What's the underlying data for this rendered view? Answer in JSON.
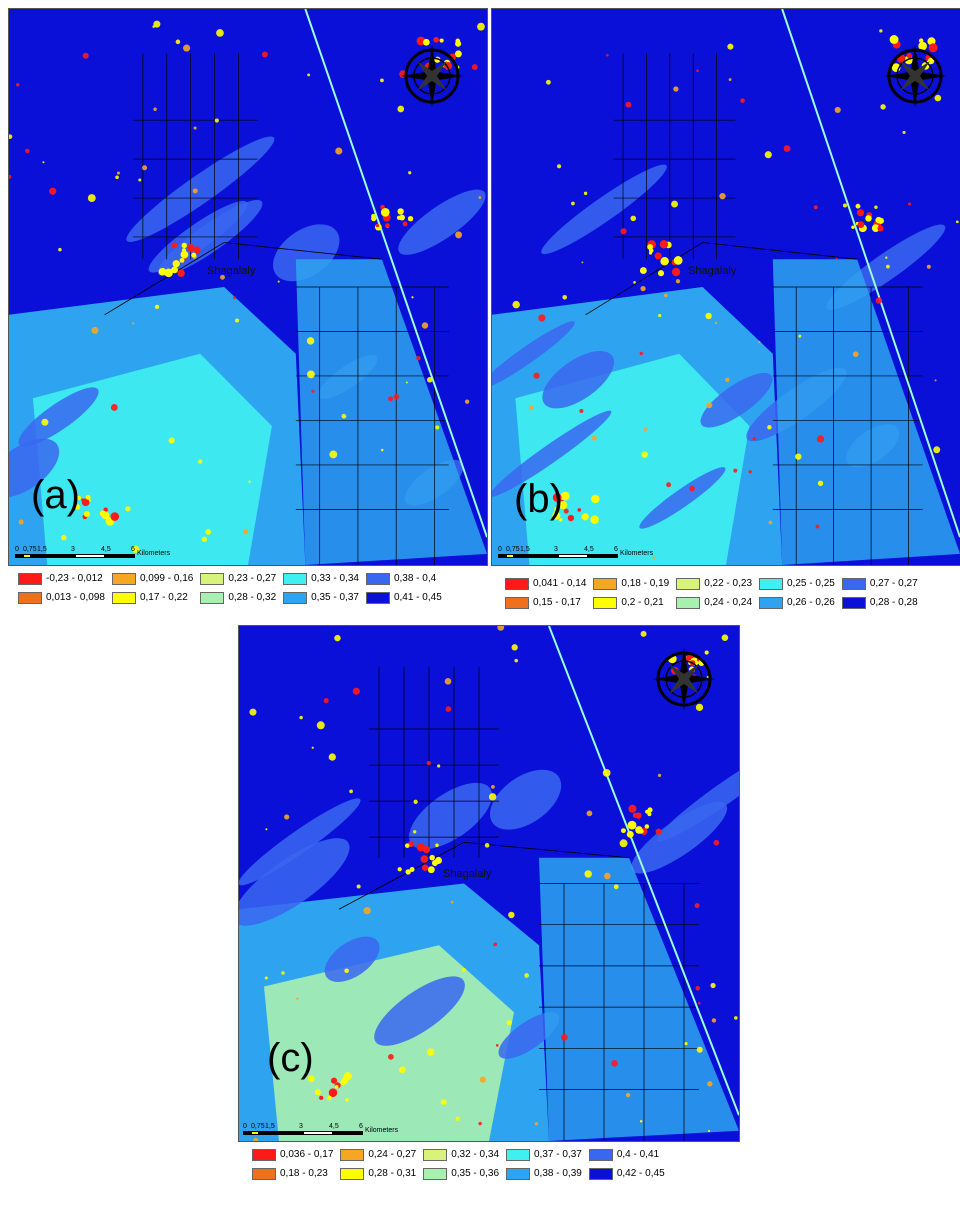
{
  "panels": [
    {
      "label": "(a)",
      "town": "Shagalaly",
      "scale": {
        "ticks": [
          "0",
          "0,75",
          "1,5",
          "3",
          "4,5",
          "6"
        ],
        "unit": "Kilometers"
      },
      "legend": [
        "-0,23 - 0,012",
        "0,013 - 0,098",
        "0,099 - 0,16",
        "0,17 - 0,22",
        "0,23 - 0,27",
        "0,28 - 0,32",
        "0,33 - 0,34",
        "0,35 - 0,37",
        "0,38 - 0,4",
        "0,41 - 0,45"
      ]
    },
    {
      "label": "(b)",
      "town": "Shagalaly",
      "scale": {
        "ticks": [
          "0",
          "0,75",
          "1,5",
          "3",
          "4,5",
          "6"
        ],
        "unit": "Kilometers"
      },
      "legend": [
        "0,041 - 0,14",
        "0,15 - 0,17",
        "0,18 - 0,19",
        "0,2 - 0,21",
        "0,22 - 0,23",
        "0,24 - 0,24",
        "0,25 - 0,25",
        "0,26 - 0,26",
        "0,27 - 0,27",
        "0,28 - 0,28"
      ]
    },
    {
      "label": "(c)",
      "town": "Shagalaly",
      "scale": {
        "ticks": [
          "0",
          "0,75",
          "1,5",
          "3",
          "4,5",
          "6"
        ],
        "unit": "Kilometers"
      },
      "legend": [
        "0,036 - 0,17",
        "0,18 - 0,23",
        "0,24 - 0,27",
        "0,28 - 0,31",
        "0,32 - 0,34",
        "0,35 - 0,36",
        "0,37 - 0,37",
        "0,38 - 0,39",
        "0,4 - 0,41",
        "0,42 - 0,45"
      ]
    }
  ],
  "legend_colors": [
    "#ff1a1a",
    "#f0701e",
    "#f5a623",
    "#ffff00",
    "#d9f27a",
    "#a8f0b0",
    "#3ff0f0",
    "#2ea4f0",
    "#3a67f0",
    "#0a10d8"
  ],
  "map_colors": {
    "deep": "#0a10d8",
    "blue": "#3a67f0",
    "mid": "#2ea4f0",
    "cyan": "#3ff0f0",
    "light": "#a8f0b0",
    "yellow": "#ffff00",
    "red": "#ff1a1a",
    "orange": "#f5a623"
  },
  "compass_icon": "north-arrow-compass-icon"
}
